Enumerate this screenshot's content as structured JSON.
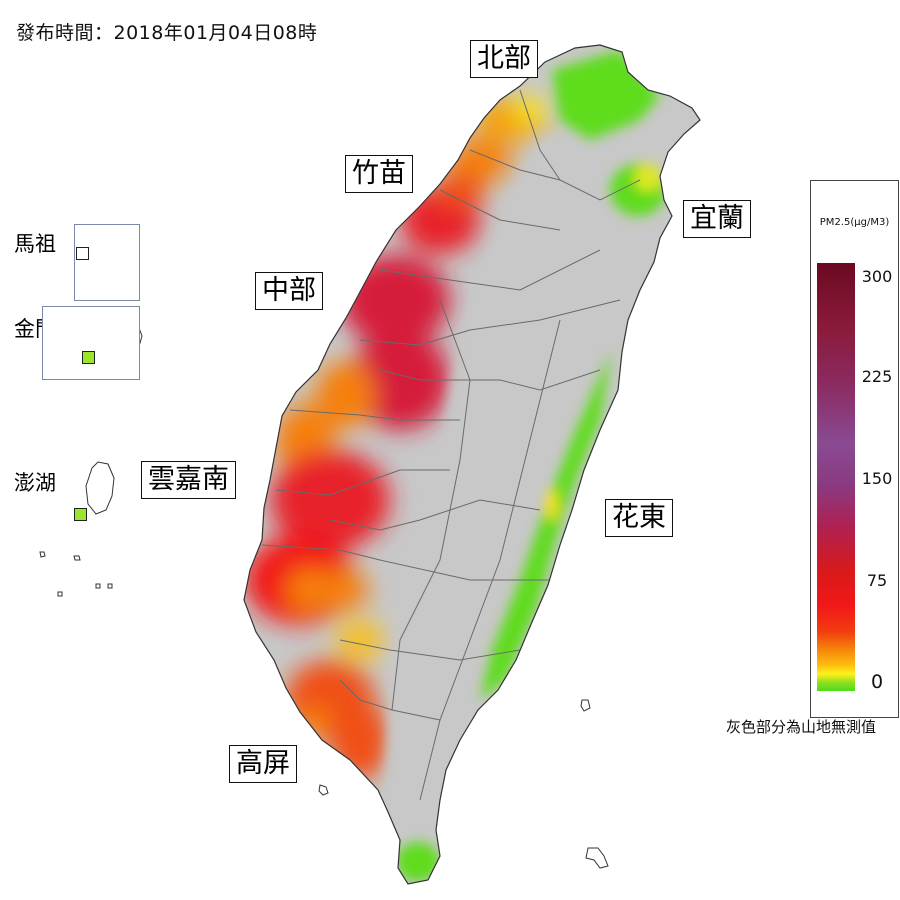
{
  "header": {
    "issue_time": "發布時間：2018年01月04日08時"
  },
  "regions": {
    "north": "北部",
    "zhumiao": "竹苗",
    "central": "中部",
    "yunjianan": "雲嘉南",
    "gaoping": "高屏",
    "yilan": "宜蘭",
    "huadong": "花東"
  },
  "islets": {
    "matsu": {
      "label": "馬祖",
      "station_color": "#ffffff"
    },
    "kinmen": {
      "label": "金門",
      "station_color": "#9be62a"
    },
    "penghu": {
      "label": "澎湖",
      "station_color": "#9be62a"
    }
  },
  "legend": {
    "title": "PM2.5(μg/M3)",
    "ticks": [
      "300",
      "225",
      "150",
      "75",
      "0"
    ],
    "scale_colors": [
      "#6b0a22",
      "#8a4a92",
      "#f21818",
      "#ffbe10",
      "#4bdc1c"
    ]
  },
  "note": "灰色部分為山地無測值",
  "colors": {
    "mountain_gray": "#c8c8c8",
    "good_green": "#5fdc1e",
    "moderate_yellow": "#f7e21a",
    "orange": "#f5800a",
    "red": "#e8202a",
    "crimson": "#d61f3a"
  }
}
